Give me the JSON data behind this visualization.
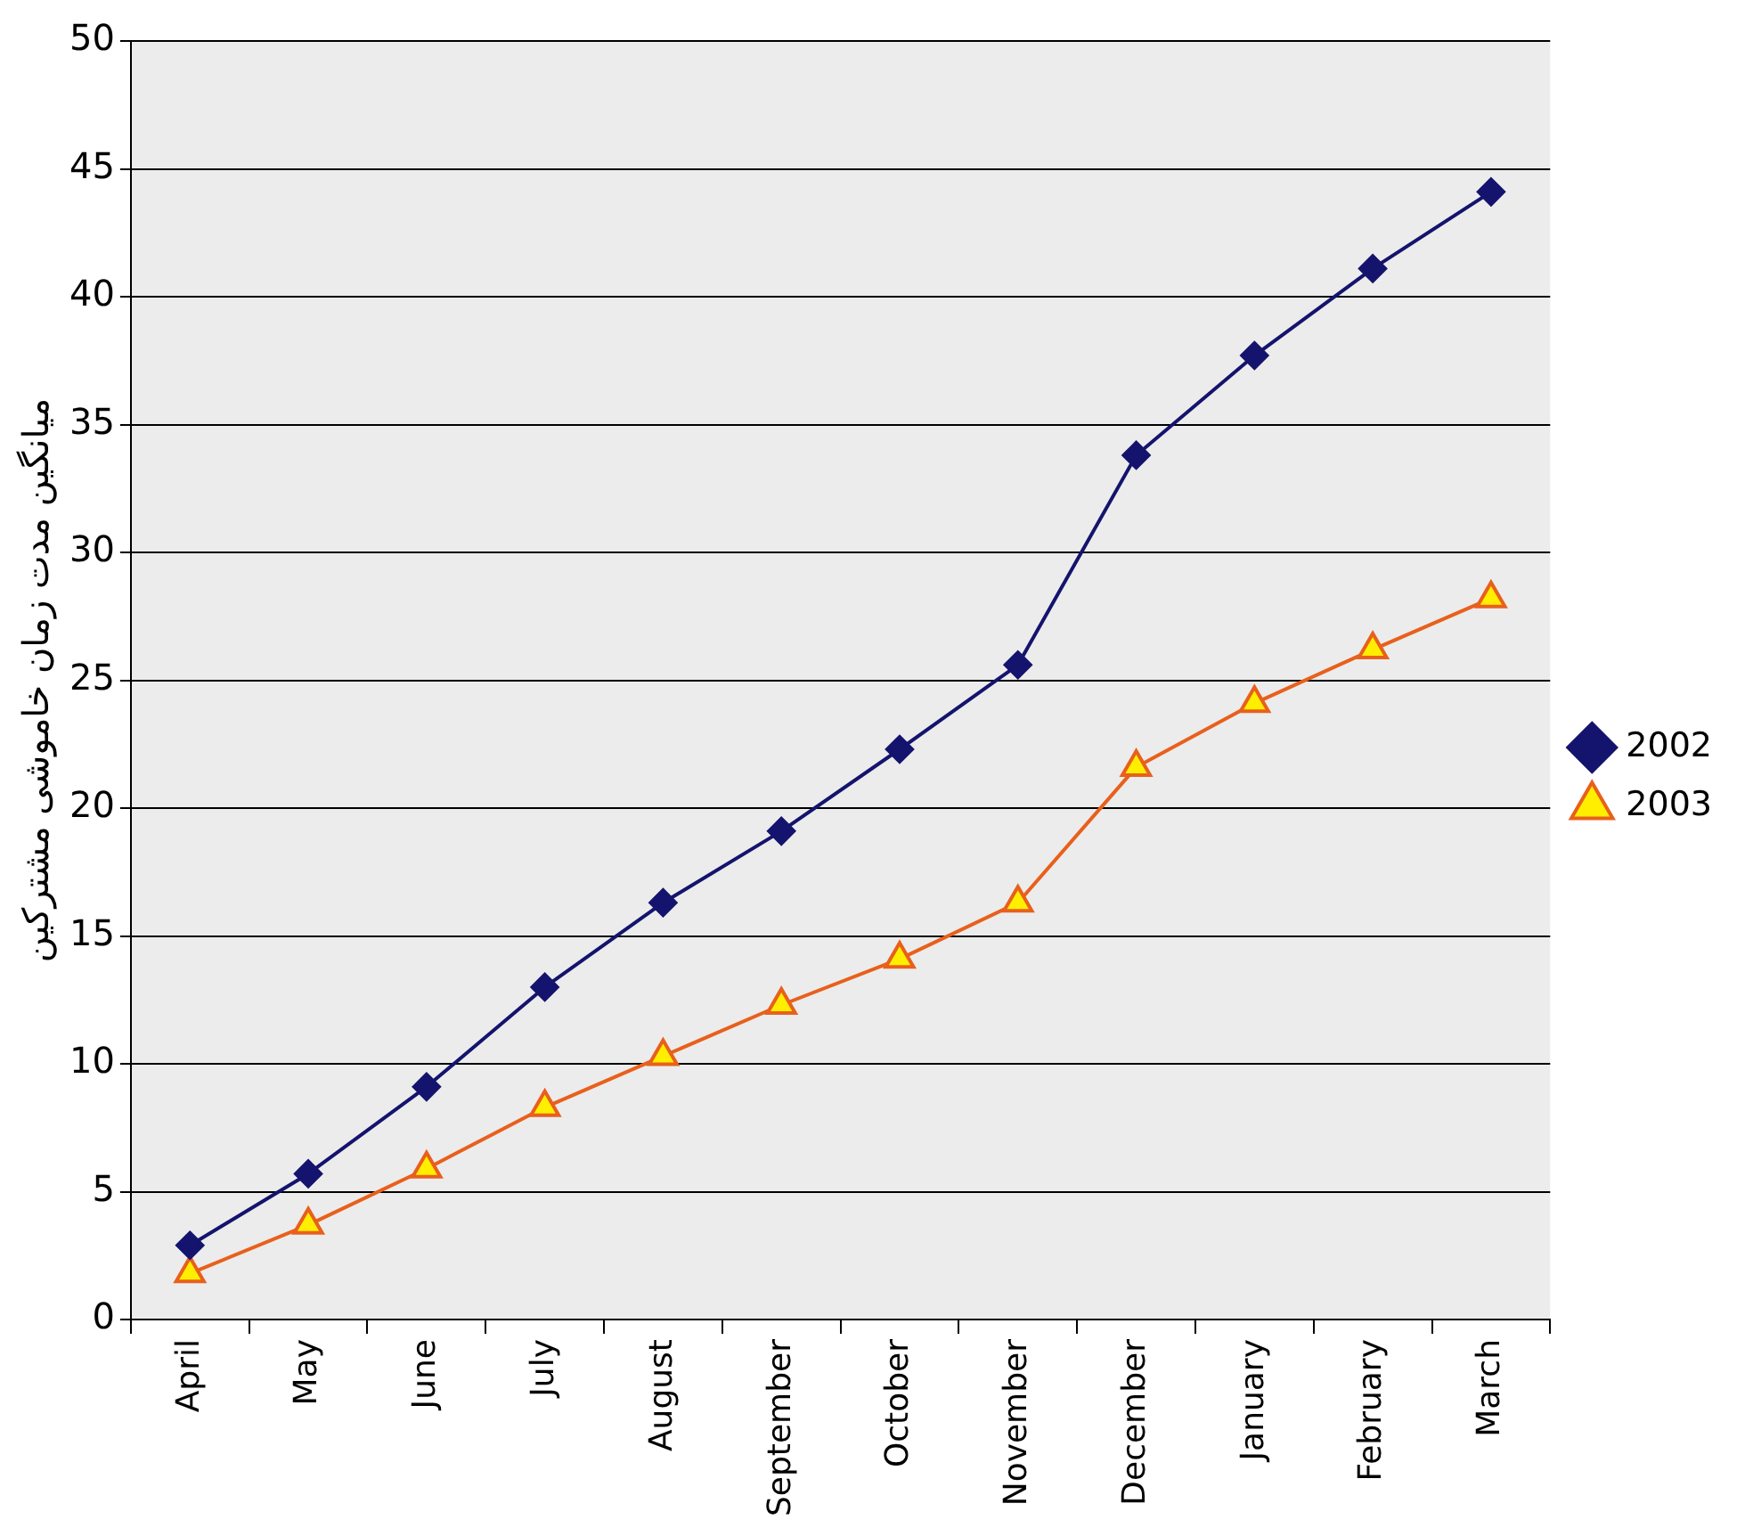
{
  "chart_data": {
    "type": "line",
    "ylabel": "میانگین مدت زمان خاموشی مشترکین",
    "categories": [
      "April",
      "May",
      "June",
      "July",
      "August",
      "September",
      "October",
      "November",
      "December",
      "January",
      "February",
      "March"
    ],
    "series": [
      {
        "name": "2002",
        "color": "#14146e",
        "marker": "diamond",
        "values": [
          2.9,
          5.7,
          9.1,
          13.0,
          16.3,
          19.1,
          22.3,
          25.6,
          33.8,
          37.7,
          41.1,
          44.1
        ]
      },
      {
        "name": "2003",
        "color": "#e8601c",
        "marker": "triangle",
        "values": [
          1.8,
          3.7,
          5.9,
          8.3,
          10.3,
          12.3,
          14.1,
          16.3,
          21.6,
          24.1,
          26.2,
          28.2
        ]
      }
    ],
    "ylim": [
      0,
      50
    ],
    "yticks": [
      0,
      5,
      10,
      15,
      20,
      25,
      30,
      35,
      40,
      45,
      50
    ],
    "grid": "y",
    "legend": "right"
  }
}
